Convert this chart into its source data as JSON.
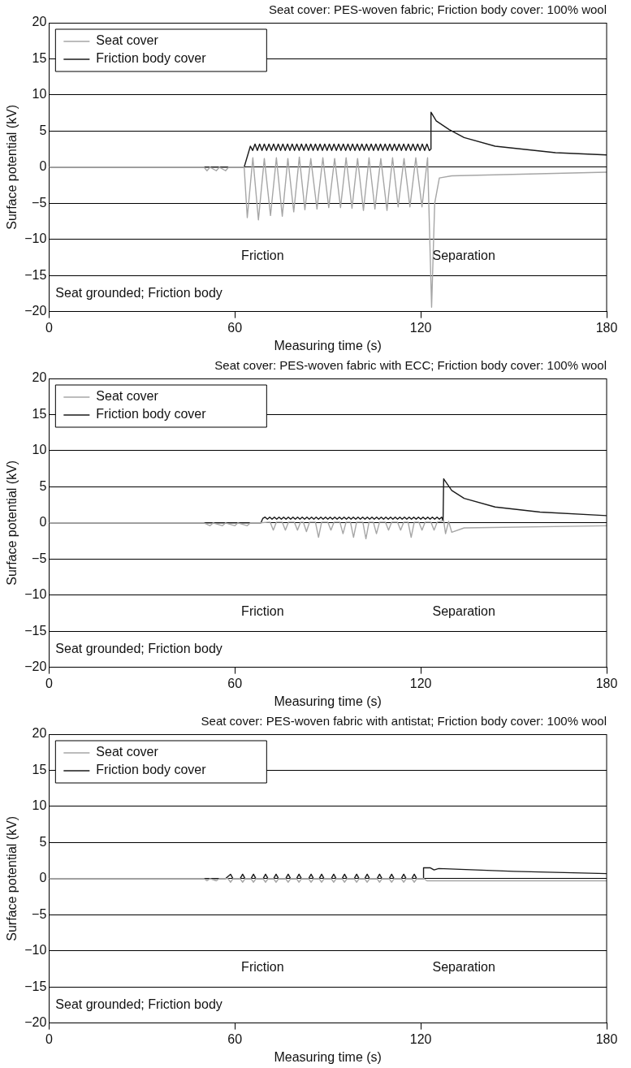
{
  "chart_data": [
    {
      "type": "line",
      "title": "Seat cover: PES-woven fabric; Friction body cover: 100% wool",
      "xlabel": "Measuring time (s)",
      "ylabel": "Surface potential (kV)",
      "xlim": [
        0,
        180
      ],
      "xticks": [
        0,
        60,
        120,
        180
      ],
      "ylim": [
        -20,
        20
      ],
      "yticks": [
        {
          "value": -20,
          "label": "−20"
        },
        {
          "value": -15,
          "label": "−15"
        },
        {
          "value": -10,
          "label": "−10"
        },
        {
          "value": -5,
          "label": "−5"
        },
        0,
        5,
        10,
        15,
        20
      ],
      "grid": "y",
      "legend": "top left",
      "line_style": "solid",
      "marker": "none",
      "annotations": [
        "Friction",
        "Separation",
        "Seat grounded; Friction body"
      ],
      "series": [
        {
          "name": "Seat cover",
          "color": "#a6a6a6",
          "x": [
            0,
            50,
            51,
            52,
            54,
            55,
            57,
            58,
            63,
            64,
            65.8,
            67.6,
            69.5,
            71.5,
            73.4,
            75.3,
            77.1,
            79,
            80.8,
            82.6,
            84.5,
            86.5,
            88.4,
            90.3,
            92.2,
            94.1,
            95.9,
            97.8,
            99.6,
            101.5,
            103.3,
            105.2,
            107.1,
            109.1,
            110.9,
            112.7,
            114.6,
            116.5,
            118.4,
            120.4,
            122.2,
            123.5,
            124.5,
            126,
            130,
            180
          ],
          "values": [
            0,
            0,
            -0.5,
            0,
            -0.5,
            0,
            -0.5,
            0,
            0,
            -7.0,
            1.3,
            -7.3,
            1.2,
            -6.7,
            1.3,
            -6.8,
            1.2,
            -6.2,
            1.4,
            -5.9,
            1.2,
            -5.8,
            1.3,
            -5.6,
            1.2,
            -5.6,
            1.3,
            -5.7,
            1.2,
            -6.0,
            1.3,
            -5.8,
            1.2,
            -6.0,
            1.3,
            -5.5,
            1.2,
            -5.5,
            1.3,
            -5.5,
            1.3,
            -19.4,
            -5,
            -1.5,
            -1.2,
            -0.7
          ]
        },
        {
          "name": "Friction body cover",
          "color": "#1a1a1a",
          "x": [
            0,
            63,
            65,
            65.75,
            66.5,
            67.25,
            68,
            68.75,
            69.5,
            70.25,
            71,
            71.75,
            72.5,
            73.25,
            74,
            74.75,
            75.5,
            76.25,
            77,
            77.75,
            78.5,
            79.25,
            80,
            80.75,
            81.5,
            82.25,
            83,
            83.75,
            84.5,
            85.25,
            86,
            86.75,
            87.5,
            88.25,
            89,
            89.75,
            90.5,
            91.25,
            92,
            92.75,
            93.5,
            94.25,
            95,
            95.75,
            96.5,
            97.25,
            98,
            98.75,
            99.5,
            100.25,
            101,
            101.75,
            102.5,
            103.25,
            104,
            104.75,
            105.5,
            106.25,
            107,
            107.75,
            108.5,
            109.25,
            110,
            110.75,
            111.5,
            112.25,
            113,
            113.75,
            114.5,
            115.25,
            116,
            116.75,
            117.5,
            118.25,
            119,
            119.75,
            120.5,
            121.25,
            122,
            122.75,
            123.3,
            123.3,
            125,
            129.2,
            134,
            144,
            163.5,
            180
          ],
          "values": [
            0,
            0,
            2.9,
            2.3,
            3.2,
            2.3,
            3.2,
            2.3,
            3.2,
            2.3,
            3.2,
            2.3,
            3.2,
            2.3,
            3.2,
            2.3,
            3.2,
            2.3,
            3.2,
            2.3,
            3.2,
            2.3,
            3.2,
            2.3,
            3.2,
            2.3,
            3.2,
            2.3,
            3.2,
            2.3,
            3.2,
            2.3,
            3.2,
            2.3,
            3.2,
            2.3,
            3.2,
            2.3,
            3.2,
            2.3,
            3.2,
            2.3,
            3.2,
            2.3,
            3.2,
            2.3,
            3.2,
            2.3,
            3.2,
            2.3,
            3.2,
            2.3,
            3.2,
            2.3,
            3.2,
            2.3,
            3.2,
            2.3,
            3.2,
            2.3,
            3.2,
            2.3,
            3.2,
            2.3,
            3.2,
            2.3,
            3.2,
            2.3,
            3.2,
            2.3,
            3.2,
            2.3,
            3.2,
            2.3,
            3.2,
            2.3,
            3.2,
            2.3,
            3.2,
            2.3,
            2.5,
            7.6,
            6.4,
            5.2,
            4.1,
            2.9,
            2.0,
            1.7
          ]
        }
      ]
    },
    {
      "type": "line",
      "title": "Seat cover: PES-woven fabric with ECC; Friction body cover: 100% wool",
      "xlabel": "Measuring time (s)",
      "ylabel": "Surface potential (kV)",
      "xlim": [
        0,
        180
      ],
      "xticks": [
        0,
        60,
        120,
        180
      ],
      "ylim": [
        -20,
        20
      ],
      "yticks": [
        {
          "value": -20,
          "label": "−20"
        },
        {
          "value": -15,
          "label": "−15"
        },
        {
          "value": -10,
          "label": "−10"
        },
        {
          "value": -5,
          "label": "−5"
        },
        0,
        5,
        10,
        15,
        20
      ],
      "grid": "y",
      "legend": "top left",
      "line_style": "solid",
      "marker": "none",
      "annotations": [
        "Friction",
        "Separation",
        "Seat grounded; Friction body"
      ],
      "series": [
        {
          "name": "Seat cover",
          "color": "#a6a6a6",
          "x": [
            0,
            50,
            52,
            53,
            56,
            57,
            60,
            61,
            64,
            65,
            68,
            71.4,
            72.4,
            73.4,
            75.3,
            76.3,
            77.3,
            79.2,
            80.2,
            81.2,
            82.1,
            83.1,
            84.1,
            86,
            87,
            88,
            90,
            91,
            92,
            93.9,
            94.9,
            95.9,
            97.3,
            98.3,
            99.3,
            101.3,
            102.3,
            103.3,
            104.7,
            105.7,
            106.7,
            108.6,
            109.6,
            110.6,
            112.5,
            113.5,
            114.5,
            115.9,
            116.9,
            117.9,
            119.4,
            120.4,
            121.4,
            123.3,
            124.3,
            125.3,
            127.4,
            128,
            129,
            130,
            134,
            180
          ],
          "values": [
            0,
            0,
            -0.4,
            0,
            -0.4,
            0,
            -0.4,
            0,
            -0.4,
            0,
            0,
            0.1,
            -1,
            0.1,
            0.1,
            -1,
            0.1,
            0.1,
            -1,
            0.1,
            0.1,
            -1.2,
            0.1,
            0.1,
            -2,
            0.1,
            0.1,
            -1,
            0.1,
            0.1,
            -1.5,
            0.1,
            0.1,
            -2,
            0.1,
            0.1,
            -2.2,
            0.1,
            0.1,
            -1.5,
            0.1,
            0.1,
            -1,
            0.1,
            0.1,
            -1,
            0.1,
            0.1,
            -2,
            0.1,
            0.1,
            -1,
            0.1,
            0.1,
            -1,
            0.1,
            0.3,
            -1.5,
            0.2,
            -1.3,
            -0.7,
            -0.4
          ]
        },
        {
          "name": "Friction body cover",
          "color": "#1a1a1a",
          "x": [
            0,
            68.4,
            69,
            69.75,
            70.5,
            71.25,
            72,
            72.75,
            73.5,
            74.25,
            75,
            75.75,
            76.5,
            77.25,
            78,
            78.75,
            79.5,
            80.25,
            81,
            81.75,
            82.5,
            83.25,
            84,
            84.75,
            85.5,
            86.25,
            87,
            87.75,
            88.5,
            89.25,
            90,
            90.75,
            91.5,
            92.25,
            93,
            93.75,
            94.5,
            95.25,
            96,
            96.75,
            97.5,
            98.25,
            99,
            99.75,
            100.5,
            101.25,
            102,
            102.75,
            103.5,
            104.25,
            105,
            105.75,
            106.5,
            107.25,
            108,
            108.75,
            109.5,
            110.25,
            111,
            111.75,
            112.5,
            113.25,
            114,
            114.75,
            115.5,
            116.25,
            117,
            117.75,
            118.5,
            119.25,
            120,
            120.75,
            121.5,
            122.25,
            123,
            123.75,
            124.5,
            125.25,
            126,
            126.75,
            127.2,
            127.4,
            130,
            134,
            144,
            158.5,
            180
          ],
          "values": [
            0,
            0,
            0.6,
            0.8,
            0.5,
            0.8,
            0.5,
            0.8,
            0.5,
            0.8,
            0.5,
            0.8,
            0.5,
            0.8,
            0.5,
            0.8,
            0.5,
            0.8,
            0.5,
            0.8,
            0.5,
            0.8,
            0.5,
            0.8,
            0.5,
            0.8,
            0.5,
            0.8,
            0.5,
            0.8,
            0.5,
            0.8,
            0.5,
            0.8,
            0.5,
            0.8,
            0.5,
            0.8,
            0.5,
            0.8,
            0.5,
            0.8,
            0.5,
            0.8,
            0.5,
            0.8,
            0.5,
            0.8,
            0.5,
            0.8,
            0.5,
            0.8,
            0.5,
            0.8,
            0.5,
            0.8,
            0.5,
            0.8,
            0.5,
            0.8,
            0.5,
            0.8,
            0.5,
            0.8,
            0.5,
            0.8,
            0.5,
            0.8,
            0.5,
            0.8,
            0.5,
            0.8,
            0.5,
            0.8,
            0.5,
            0.8,
            0.5,
            0.8,
            0.5,
            0.8,
            0.3,
            6.1,
            4.5,
            3.4,
            2.2,
            1.5,
            1.0
          ]
        }
      ]
    },
    {
      "type": "line",
      "title": "Seat cover: PES-woven fabric with antistat; Friction body cover: 100% wool",
      "xlabel": "Measuring time (s)",
      "ylabel": "Surface potential (kV)",
      "xlim": [
        0,
        180
      ],
      "xticks": [
        0,
        60,
        120,
        180
      ],
      "ylim": [
        -20,
        20
      ],
      "yticks": [
        {
          "value": -20,
          "label": "−20"
        },
        {
          "value": -15,
          "label": "−15"
        },
        {
          "value": -10,
          "label": "−10"
        },
        {
          "value": -5,
          "label": "−5"
        },
        0,
        5,
        10,
        15,
        20
      ],
      "grid": "y",
      "legend": "top left",
      "line_style": "solid",
      "marker": "none",
      "annotations": [
        "Friction",
        "Separation",
        "Seat grounded; Friction body"
      ],
      "series": [
        {
          "name": "Seat cover",
          "color": "#a6a6a6",
          "x": [
            0,
            50,
            51,
            52,
            54,
            55,
            57.8,
            58.6,
            59.4,
            61.7,
            62.5,
            63.3,
            65.2,
            66,
            66.8,
            69.1,
            69.9,
            70.7,
            72.5,
            73.3,
            74.1,
            76.4,
            77.2,
            78,
            79.9,
            80.7,
            81.5,
            83.8,
            84.6,
            85.4,
            87.2,
            88,
            88.8,
            91.1,
            91.9,
            92.7,
            94.6,
            95.4,
            96.2,
            98.5,
            99.3,
            100.1,
            101.9,
            102.7,
            103.5,
            105.9,
            106.7,
            107.5,
            109.8,
            110.6,
            111.4,
            113.7,
            114.5,
            115.3,
            117.1,
            117.9,
            118.7,
            121,
            122,
            180
          ],
          "values": [
            0,
            0,
            -0.3,
            0,
            -0.3,
            0,
            0,
            -0.5,
            0,
            0,
            -0.5,
            0,
            0,
            -0.5,
            0,
            0,
            -0.5,
            0,
            0,
            -0.5,
            0,
            0,
            -0.5,
            0,
            0,
            -0.5,
            0,
            0,
            -0.5,
            0,
            0,
            -0.5,
            0,
            0,
            -0.5,
            0,
            0,
            -0.5,
            0,
            0,
            -0.5,
            0,
            0,
            -0.5,
            0,
            0,
            -0.5,
            0,
            0,
            -0.5,
            0,
            0,
            -0.5,
            0,
            0,
            -0.5,
            0,
            0,
            -0.3,
            -0.3
          ]
        },
        {
          "name": "Friction body cover",
          "color": "#1a1a1a",
          "x": [
            0,
            57,
            58.6,
            59.4,
            61.7,
            62.5,
            63.3,
            65.2,
            66,
            66.8,
            69.1,
            69.9,
            70.7,
            72.5,
            73.3,
            74.1,
            76.4,
            77.2,
            78,
            79.9,
            80.7,
            81.5,
            83.8,
            84.6,
            85.4,
            87.2,
            88,
            88.8,
            91.1,
            91.9,
            92.7,
            94.6,
            95.4,
            96.2,
            98.5,
            99.3,
            100.1,
            101.9,
            102.7,
            103.5,
            105.9,
            106.7,
            107.5,
            109.8,
            110.6,
            111.4,
            113.7,
            114.5,
            115.3,
            117.1,
            117.9,
            118.7,
            120.9,
            120.9,
            123,
            124.3,
            125.8,
            150,
            180
          ],
          "values": [
            0,
            0,
            0.6,
            0,
            0,
            0.6,
            0,
            0,
            0.6,
            0,
            0,
            0.6,
            0,
            0,
            0.6,
            0,
            0,
            0.6,
            0,
            0,
            0.6,
            0,
            0,
            0.6,
            0,
            0,
            0.6,
            0,
            0,
            0.6,
            0,
            0,
            0.6,
            0,
            0,
            0.6,
            0,
            0,
            0.6,
            0,
            0,
            0.6,
            0,
            0,
            0.6,
            0,
            0,
            0.6,
            0,
            0,
            0.6,
            0,
            0,
            1.5,
            1.5,
            1.2,
            1.4,
            1.0,
            0.7
          ]
        }
      ]
    }
  ]
}
